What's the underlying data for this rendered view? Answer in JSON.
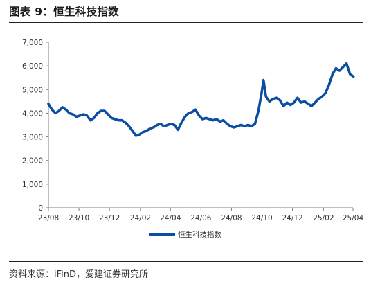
{
  "header": {
    "title": "图表 9：恒生科技指数"
  },
  "footer": {
    "source": "资料来源：iFinD，爱建证券研究所"
  },
  "colors": {
    "series": "#0b4ea2",
    "axis": "#7f7f7f",
    "text": "#333333"
  },
  "chart_data": {
    "type": "line",
    "title": "",
    "xlabel": "",
    "ylabel": "",
    "ylim": [
      0,
      7000
    ],
    "y_ticks": [
      "0",
      "1,000",
      "2,000",
      "3,000",
      "4,000",
      "5,000",
      "6,000",
      "7,000"
    ],
    "y_tick_values": [
      0,
      1000,
      2000,
      3000,
      4000,
      5000,
      6000,
      7000
    ],
    "x_ticks": [
      "23/08",
      "23/10",
      "23/12",
      "24/02",
      "24/04",
      "24/06",
      "24/08",
      "24/10",
      "24/12",
      "25/02",
      "25/04"
    ],
    "x_tick_values": [
      "2023-08-01",
      "2023-10-01",
      "2023-12-01",
      "2024-02-01",
      "2024-04-01",
      "2024-06-01",
      "2024-08-01",
      "2024-10-01",
      "2024-12-01",
      "2025-02-01",
      "2025-04-01"
    ],
    "legend": {
      "position": "bottom-center",
      "entries": [
        "恒生科技指数"
      ]
    },
    "grid": false,
    "series": [
      {
        "name": "恒生科技指数",
        "points": [
          [
            "2023-08-01",
            4400
          ],
          [
            "2023-08-08",
            4150
          ],
          [
            "2023-08-15",
            4000
          ],
          [
            "2023-08-22",
            4100
          ],
          [
            "2023-08-29",
            4250
          ],
          [
            "2023-09-05",
            4150
          ],
          [
            "2023-09-12",
            4000
          ],
          [
            "2023-09-19",
            3950
          ],
          [
            "2023-09-26",
            3850
          ],
          [
            "2023-10-03",
            3900
          ],
          [
            "2023-10-10",
            3950
          ],
          [
            "2023-10-17",
            3900
          ],
          [
            "2023-10-24",
            3700
          ],
          [
            "2023-10-31",
            3800
          ],
          [
            "2023-11-07",
            4000
          ],
          [
            "2023-11-14",
            4100
          ],
          [
            "2023-11-21",
            4100
          ],
          [
            "2023-11-28",
            3950
          ],
          [
            "2023-12-05",
            3800
          ],
          [
            "2023-12-12",
            3750
          ],
          [
            "2023-12-19",
            3700
          ],
          [
            "2023-12-26",
            3700
          ],
          [
            "2024-01-02",
            3600
          ],
          [
            "2024-01-09",
            3450
          ],
          [
            "2024-01-16",
            3250
          ],
          [
            "2024-01-23",
            3050
          ],
          [
            "2024-01-30",
            3100
          ],
          [
            "2024-02-06",
            3200
          ],
          [
            "2024-02-13",
            3250
          ],
          [
            "2024-02-20",
            3350
          ],
          [
            "2024-02-27",
            3400
          ],
          [
            "2024-03-05",
            3500
          ],
          [
            "2024-03-12",
            3550
          ],
          [
            "2024-03-19",
            3450
          ],
          [
            "2024-03-26",
            3500
          ],
          [
            "2024-04-02",
            3550
          ],
          [
            "2024-04-09",
            3500
          ],
          [
            "2024-04-16",
            3300
          ],
          [
            "2024-04-23",
            3600
          ],
          [
            "2024-04-30",
            3850
          ],
          [
            "2024-05-07",
            4000
          ],
          [
            "2024-05-14",
            4050
          ],
          [
            "2024-05-21",
            4150
          ],
          [
            "2024-05-28",
            3900
          ],
          [
            "2024-06-04",
            3750
          ],
          [
            "2024-06-11",
            3800
          ],
          [
            "2024-06-18",
            3750
          ],
          [
            "2024-06-25",
            3700
          ],
          [
            "2024-07-02",
            3750
          ],
          [
            "2024-07-09",
            3650
          ],
          [
            "2024-07-16",
            3700
          ],
          [
            "2024-07-23",
            3550
          ],
          [
            "2024-07-30",
            3450
          ],
          [
            "2024-08-06",
            3400
          ],
          [
            "2024-08-13",
            3450
          ],
          [
            "2024-08-20",
            3500
          ],
          [
            "2024-08-27",
            3450
          ],
          [
            "2024-09-03",
            3500
          ],
          [
            "2024-09-10",
            3450
          ],
          [
            "2024-09-17",
            3550
          ],
          [
            "2024-09-24",
            4100
          ],
          [
            "2024-10-01",
            4950
          ],
          [
            "2024-10-04",
            5400
          ],
          [
            "2024-10-09",
            4700
          ],
          [
            "2024-10-16",
            4500
          ],
          [
            "2024-10-23",
            4600
          ],
          [
            "2024-10-30",
            4650
          ],
          [
            "2024-11-06",
            4550
          ],
          [
            "2024-11-13",
            4300
          ],
          [
            "2024-11-20",
            4450
          ],
          [
            "2024-11-27",
            4350
          ],
          [
            "2024-12-04",
            4450
          ],
          [
            "2024-12-11",
            4650
          ],
          [
            "2024-12-18",
            4450
          ],
          [
            "2024-12-25",
            4500
          ],
          [
            "2025-01-01",
            4400
          ],
          [
            "2025-01-08",
            4300
          ],
          [
            "2025-01-15",
            4450
          ],
          [
            "2025-01-22",
            4600
          ],
          [
            "2025-01-29",
            4700
          ],
          [
            "2025-02-05",
            4850
          ],
          [
            "2025-02-12",
            5200
          ],
          [
            "2025-02-19",
            5650
          ],
          [
            "2025-02-26",
            5900
          ],
          [
            "2025-03-05",
            5800
          ],
          [
            "2025-03-12",
            5950
          ],
          [
            "2025-03-19",
            6100
          ],
          [
            "2025-03-26",
            5650
          ],
          [
            "2025-04-02",
            5550
          ]
        ]
      }
    ]
  }
}
